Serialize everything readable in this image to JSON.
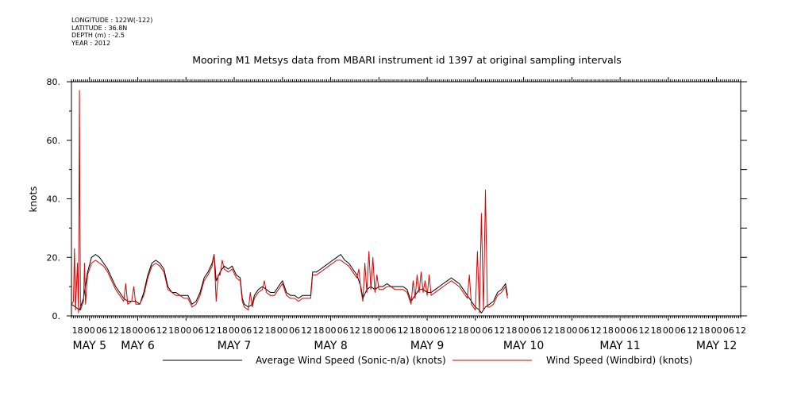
{
  "meta": {
    "longitude": "LONGITUDE : 122W(-122)",
    "latitude": "LATITUDE : 36.8N",
    "depth": "DEPTH (m) : -2.5",
    "year": "YEAR : 2012"
  },
  "title": "Mooring M1 Metsys data from MBARI instrument id 1397 at original sampling intervals",
  "colors": {
    "avg_series": "#000000",
    "windbird_series": "#dd0000",
    "axis": "#000000"
  },
  "chart_data": {
    "type": "line",
    "title": "Mooring M1 Metsys data from MBARI instrument id 1397 at original sampling intervals",
    "ylabel": "knots",
    "xlabel": "",
    "ylim": [
      0,
      80
    ],
    "y_ticks": [
      "0.",
      "20.",
      "40.",
      "60.",
      "80."
    ],
    "x_range_hours": [
      -9,
      324
    ],
    "x_origin": "2012-05-05 00:00",
    "x_hour_ticks": [
      {
        "h": -6,
        "label": "18"
      },
      {
        "h": 0,
        "label": "00"
      },
      {
        "h": 6,
        "label": "06"
      },
      {
        "h": 12,
        "label": "12"
      },
      {
        "h": 18,
        "label": "18"
      },
      {
        "h": 24,
        "label": "00"
      },
      {
        "h": 30,
        "label": "06"
      },
      {
        "h": 36,
        "label": "12"
      },
      {
        "h": 42,
        "label": "18"
      },
      {
        "h": 48,
        "label": "00"
      },
      {
        "h": 54,
        "label": "06"
      },
      {
        "h": 60,
        "label": "12"
      },
      {
        "h": 66,
        "label": "18"
      },
      {
        "h": 72,
        "label": "00"
      },
      {
        "h": 78,
        "label": "06"
      },
      {
        "h": 84,
        "label": "12"
      },
      {
        "h": 90,
        "label": "18"
      },
      {
        "h": 96,
        "label": "00"
      },
      {
        "h": 102,
        "label": "06"
      },
      {
        "h": 108,
        "label": "12"
      },
      {
        "h": 114,
        "label": "18"
      },
      {
        "h": 120,
        "label": "00"
      },
      {
        "h": 126,
        "label": "06"
      },
      {
        "h": 132,
        "label": "12"
      },
      {
        "h": 138,
        "label": "18"
      },
      {
        "h": 144,
        "label": "00"
      },
      {
        "h": 150,
        "label": "06"
      },
      {
        "h": 156,
        "label": "12"
      },
      {
        "h": 162,
        "label": "18"
      },
      {
        "h": 168,
        "label": "00"
      },
      {
        "h": 174,
        "label": "06"
      },
      {
        "h": 180,
        "label": "12"
      },
      {
        "h": 186,
        "label": "18"
      },
      {
        "h": 192,
        "label": "00"
      },
      {
        "h": 198,
        "label": "06"
      },
      {
        "h": 204,
        "label": "12"
      },
      {
        "h": 210,
        "label": "18"
      },
      {
        "h": 216,
        "label": "00"
      },
      {
        "h": 222,
        "label": "06"
      },
      {
        "h": 228,
        "label": "12"
      },
      {
        "h": 234,
        "label": "18"
      },
      {
        "h": 240,
        "label": "00"
      },
      {
        "h": 246,
        "label": "06"
      },
      {
        "h": 252,
        "label": "12"
      },
      {
        "h": 258,
        "label": "18"
      },
      {
        "h": 264,
        "label": "00"
      },
      {
        "h": 270,
        "label": "06"
      },
      {
        "h": 276,
        "label": "12"
      },
      {
        "h": 282,
        "label": "18"
      },
      {
        "h": 288,
        "label": "00"
      },
      {
        "h": 294,
        "label": "06"
      },
      {
        "h": 300,
        "label": "12"
      },
      {
        "h": 306,
        "label": "18"
      },
      {
        "h": 312,
        "label": "00"
      },
      {
        "h": 318,
        "label": "06"
      },
      {
        "h": 324,
        "label": "12"
      }
    ],
    "day_labels": [
      {
        "h": 0,
        "label": "MAY  5"
      },
      {
        "h": 24,
        "label": "MAY  6"
      },
      {
        "h": 72,
        "label": "MAY  7"
      },
      {
        "h": 120,
        "label": "MAY  8"
      },
      {
        "h": 168,
        "label": "MAY  9"
      },
      {
        "h": 216,
        "label": "MAY 10"
      },
      {
        "h": 264,
        "label": "MAY 11"
      },
      {
        "h": 312,
        "label": "MAY 12"
      }
    ],
    "series": [
      {
        "name": "Average Wind Speed (Sonic-n/a) (knots)",
        "color": "#000000",
        "points": [
          [
            -9,
            4
          ],
          [
            -7,
            3
          ],
          [
            -5,
            2
          ],
          [
            -3,
            6
          ],
          [
            -1,
            15
          ],
          [
            1,
            20
          ],
          [
            3,
            21
          ],
          [
            5,
            20
          ],
          [
            7,
            18
          ],
          [
            9,
            16
          ],
          [
            11,
            13
          ],
          [
            13,
            10
          ],
          [
            15,
            8
          ],
          [
            17,
            6
          ],
          [
            19,
            5
          ],
          [
            21,
            5
          ],
          [
            23,
            5
          ],
          [
            25,
            4
          ],
          [
            27,
            8
          ],
          [
            29,
            14
          ],
          [
            31,
            18
          ],
          [
            33,
            19
          ],
          [
            35,
            18
          ],
          [
            37,
            16
          ],
          [
            39,
            10
          ],
          [
            41,
            8
          ],
          [
            43,
            8
          ],
          [
            45,
            7
          ],
          [
            47,
            7
          ],
          [
            49,
            7
          ],
          [
            51,
            4
          ],
          [
            53,
            5
          ],
          [
            55,
            8
          ],
          [
            57,
            13
          ],
          [
            59,
            15
          ],
          [
            61,
            18
          ],
          [
            62,
            21
          ],
          [
            63,
            12
          ],
          [
            65,
            15
          ],
          [
            67,
            17
          ],
          [
            69,
            16
          ],
          [
            71,
            17
          ],
          [
            73,
            14
          ],
          [
            75,
            13
          ],
          [
            76,
            6
          ],
          [
            77,
            4
          ],
          [
            79,
            3
          ],
          [
            81,
            4
          ],
          [
            82,
            7
          ],
          [
            84,
            9
          ],
          [
            86,
            10
          ],
          [
            88,
            9
          ],
          [
            90,
            8
          ],
          [
            92,
            8
          ],
          [
            94,
            10
          ],
          [
            96,
            12
          ],
          [
            98,
            8
          ],
          [
            100,
            7
          ],
          [
            102,
            7
          ],
          [
            104,
            6
          ],
          [
            106,
            7
          ],
          [
            108,
            7
          ],
          [
            110,
            7
          ],
          [
            111,
            15
          ],
          [
            113,
            15
          ],
          [
            115,
            16
          ],
          [
            117,
            17
          ],
          [
            119,
            18
          ],
          [
            121,
            19
          ],
          [
            123,
            20
          ],
          [
            125,
            21
          ],
          [
            127,
            19
          ],
          [
            129,
            18
          ],
          [
            131,
            16
          ],
          [
            133,
            14
          ],
          [
            135,
            10
          ],
          [
            136,
            6
          ],
          [
            138,
            9
          ],
          [
            140,
            10
          ],
          [
            142,
            9
          ],
          [
            144,
            10
          ],
          [
            146,
            10
          ],
          [
            148,
            11
          ],
          [
            150,
            10
          ],
          [
            152,
            10
          ],
          [
            154,
            10
          ],
          [
            156,
            10
          ],
          [
            158,
            9
          ],
          [
            160,
            5
          ],
          [
            162,
            7
          ],
          [
            164,
            9
          ],
          [
            166,
            9
          ],
          [
            168,
            8
          ],
          [
            170,
            8
          ],
          [
            172,
            9
          ],
          [
            174,
            10
          ],
          [
            176,
            11
          ],
          [
            178,
            12
          ],
          [
            180,
            13
          ],
          [
            182,
            12
          ],
          [
            184,
            11
          ],
          [
            186,
            9
          ],
          [
            188,
            7
          ],
          [
            190,
            5
          ],
          [
            192,
            3
          ],
          [
            194,
            2
          ],
          [
            195,
            1
          ],
          [
            197,
            3
          ],
          [
            199,
            4
          ],
          [
            201,
            5
          ],
          [
            203,
            8
          ],
          [
            205,
            9
          ],
          [
            207,
            11
          ],
          [
            208,
            7
          ]
        ]
      },
      {
        "name": "Wind Speed (Windbird) (knots)",
        "color": "#dd0000",
        "points": [
          [
            -9,
            4
          ],
          [
            -8,
            5
          ],
          [
            -7.5,
            23
          ],
          [
            -7,
            2
          ],
          [
            -6,
            18
          ],
          [
            -5.5,
            1
          ],
          [
            -5,
            77
          ],
          [
            -4.8,
            39
          ],
          [
            -4.5,
            2
          ],
          [
            -3,
            5
          ],
          [
            -2.5,
            18
          ],
          [
            -2,
            4
          ],
          [
            -1,
            14
          ],
          [
            1,
            18
          ],
          [
            3,
            19
          ],
          [
            5,
            18
          ],
          [
            7,
            17
          ],
          [
            9,
            15
          ],
          [
            11,
            12
          ],
          [
            13,
            9
          ],
          [
            15,
            7
          ],
          [
            17,
            5
          ],
          [
            18,
            11
          ],
          [
            19,
            4
          ],
          [
            21,
            5
          ],
          [
            22,
            10
          ],
          [
            23,
            4
          ],
          [
            25,
            4
          ],
          [
            27,
            7
          ],
          [
            29,
            13
          ],
          [
            31,
            17
          ],
          [
            33,
            18
          ],
          [
            35,
            17
          ],
          [
            37,
            15
          ],
          [
            39,
            9
          ],
          [
            41,
            8
          ],
          [
            43,
            7
          ],
          [
            45,
            7
          ],
          [
            47,
            6
          ],
          [
            49,
            6
          ],
          [
            51,
            3
          ],
          [
            53,
            4
          ],
          [
            55,
            7
          ],
          [
            57,
            12
          ],
          [
            59,
            14
          ],
          [
            61,
            17
          ],
          [
            62,
            21
          ],
          [
            63,
            5
          ],
          [
            64,
            14
          ],
          [
            65,
            14
          ],
          [
            66,
            19
          ],
          [
            67,
            16
          ],
          [
            69,
            15
          ],
          [
            71,
            16
          ],
          [
            73,
            13
          ],
          [
            75,
            12
          ],
          [
            76,
            5
          ],
          [
            77,
            3
          ],
          [
            79,
            2
          ],
          [
            80,
            8
          ],
          [
            81,
            3
          ],
          [
            82,
            6
          ],
          [
            84,
            8
          ],
          [
            86,
            9
          ],
          [
            87,
            12
          ],
          [
            88,
            8
          ],
          [
            90,
            7
          ],
          [
            92,
            7
          ],
          [
            94,
            9
          ],
          [
            96,
            11
          ],
          [
            98,
            7
          ],
          [
            100,
            6
          ],
          [
            102,
            6
          ],
          [
            104,
            5
          ],
          [
            106,
            6
          ],
          [
            108,
            6
          ],
          [
            110,
            6
          ],
          [
            111,
            14
          ],
          [
            113,
            14
          ],
          [
            115,
            15
          ],
          [
            117,
            16
          ],
          [
            119,
            17
          ],
          [
            121,
            18
          ],
          [
            123,
            19
          ],
          [
            125,
            19
          ],
          [
            127,
            18
          ],
          [
            129,
            17
          ],
          [
            131,
            15
          ],
          [
            133,
            13
          ],
          [
            134,
            16
          ],
          [
            135,
            9
          ],
          [
            136,
            5
          ],
          [
            137,
            18
          ],
          [
            138,
            8
          ],
          [
            139,
            22
          ],
          [
            140,
            9
          ],
          [
            141,
            20
          ],
          [
            142,
            8
          ],
          [
            143,
            14
          ],
          [
            144,
            9
          ],
          [
            146,
            9
          ],
          [
            148,
            10
          ],
          [
            150,
            10
          ],
          [
            152,
            9
          ],
          [
            154,
            9
          ],
          [
            156,
            9
          ],
          [
            158,
            8
          ],
          [
            160,
            4
          ],
          [
            161,
            12
          ],
          [
            162,
            6
          ],
          [
            163,
            14
          ],
          [
            164,
            8
          ],
          [
            165,
            15
          ],
          [
            166,
            8
          ],
          [
            167,
            12
          ],
          [
            168,
            7
          ],
          [
            169,
            14
          ],
          [
            170,
            7
          ],
          [
            172,
            8
          ],
          [
            174,
            9
          ],
          [
            176,
            10
          ],
          [
            178,
            11
          ],
          [
            180,
            12
          ],
          [
            182,
            11
          ],
          [
            184,
            10
          ],
          [
            186,
            8
          ],
          [
            188,
            6
          ],
          [
            189,
            14
          ],
          [
            190,
            4
          ],
          [
            192,
            2
          ],
          [
            193,
            22
          ],
          [
            194,
            1
          ],
          [
            195,
            35
          ],
          [
            196,
            2
          ],
          [
            197,
            43
          ],
          [
            198,
            3
          ],
          [
            199,
            3
          ],
          [
            201,
            4
          ],
          [
            203,
            7
          ],
          [
            205,
            8
          ],
          [
            207,
            10
          ],
          [
            208,
            6
          ]
        ]
      }
    ],
    "legend": "bottom",
    "grid": false
  }
}
